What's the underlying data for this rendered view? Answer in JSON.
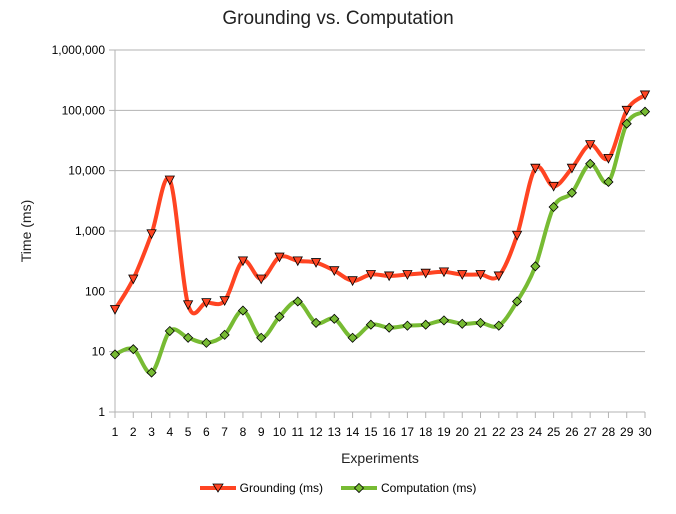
{
  "chart_data": {
    "type": "line",
    "title": "Grounding vs. Computation",
    "xlabel": "Experiments",
    "ylabel": "Time (ms)",
    "yscale": "log",
    "ylim": [
      1,
      1000000
    ],
    "yticks": [
      "1",
      "10",
      "100",
      "1,000",
      "10,000",
      "100,000",
      "1,000,000"
    ],
    "grid": "horizontal",
    "legend_position": "bottom",
    "x": [
      1,
      2,
      3,
      4,
      5,
      6,
      7,
      8,
      9,
      10,
      11,
      12,
      13,
      14,
      15,
      16,
      17,
      18,
      19,
      20,
      21,
      22,
      23,
      24,
      25,
      26,
      27,
      28,
      29,
      30
    ],
    "series": [
      {
        "name": "Grounding (ms)",
        "color": "#ff4422",
        "marker": "triangle-down",
        "marker_color": "#ff4422",
        "values": [
          50,
          160,
          900,
          7000,
          60,
          65,
          70,
          320,
          160,
          370,
          320,
          300,
          220,
          150,
          190,
          180,
          190,
          200,
          210,
          190,
          190,
          180,
          850,
          11000,
          5500,
          11000,
          27000,
          16000,
          100000,
          180000
        ]
      },
      {
        "name": "Computation (ms)",
        "color": "#77bb33",
        "marker": "diamond",
        "marker_color": "#77bb33",
        "values": [
          9,
          11,
          4.5,
          22,
          17,
          14,
          19,
          48,
          17,
          38,
          68,
          30,
          35,
          17,
          28,
          25,
          27,
          28,
          33,
          29,
          30,
          27,
          68,
          260,
          2500,
          4300,
          13000,
          6500,
          60000,
          95000
        ]
      }
    ]
  }
}
